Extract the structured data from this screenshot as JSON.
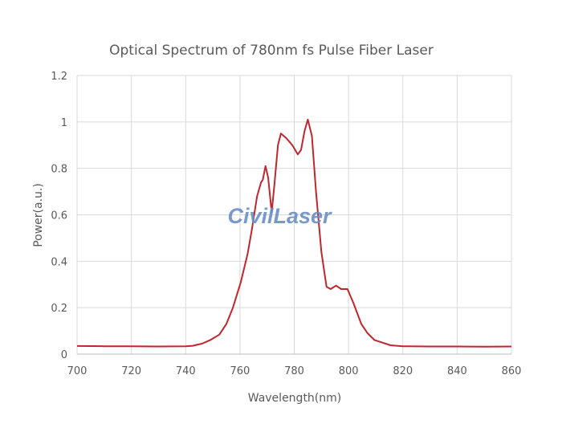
{
  "chart_data": {
    "type": "line",
    "title": "Optical Spectrum of 780nm fs Pulse Fiber Laser",
    "xlabel": "Wavelength(nm)",
    "ylabel": "Power(a.u.)",
    "xlim": [
      700,
      860
    ],
    "ylim": [
      0,
      1.2
    ],
    "xticks": [
      "700",
      "720",
      "740",
      "760",
      "780",
      "800",
      "820",
      "840",
      "860"
    ],
    "yticks": [
      "0",
      "0.2",
      "0.4",
      "0.6",
      "0.8",
      "1",
      "1.2"
    ],
    "grid": true,
    "line_color": "#c0262d",
    "watermark": "CivilLaser",
    "series": [
      {
        "x": [
          700,
          710,
          720,
          730,
          740,
          742.6,
          746,
          749,
          752.4,
          755,
          757.4,
          760.3,
          762.8,
          764.3,
          766.3,
          767.8,
          768.4,
          769.4,
          770.4,
          771.7,
          772.7,
          774,
          775.1,
          777.1,
          779.3,
          781.3,
          782.5,
          783.8,
          785,
          786.5,
          788,
          790,
          791.9,
          793.4,
          795.4,
          797.3,
          799.6,
          801.8,
          804.7,
          807,
          809.6,
          815.5,
          820,
          830,
          840,
          850,
          860
        ],
        "y": [
          0.035,
          0.034,
          0.034,
          0.033,
          0.034,
          0.036,
          0.045,
          0.06,
          0.084,
          0.13,
          0.2,
          0.31,
          0.43,
          0.53,
          0.68,
          0.74,
          0.75,
          0.81,
          0.76,
          0.61,
          0.73,
          0.9,
          0.95,
          0.93,
          0.9,
          0.86,
          0.88,
          0.96,
          1.01,
          0.94,
          0.7,
          0.44,
          0.29,
          0.28,
          0.295,
          0.28,
          0.28,
          0.22,
          0.13,
          0.09,
          0.06,
          0.038,
          0.034,
          0.033,
          0.033,
          0.032,
          0.033
        ]
      }
    ]
  }
}
